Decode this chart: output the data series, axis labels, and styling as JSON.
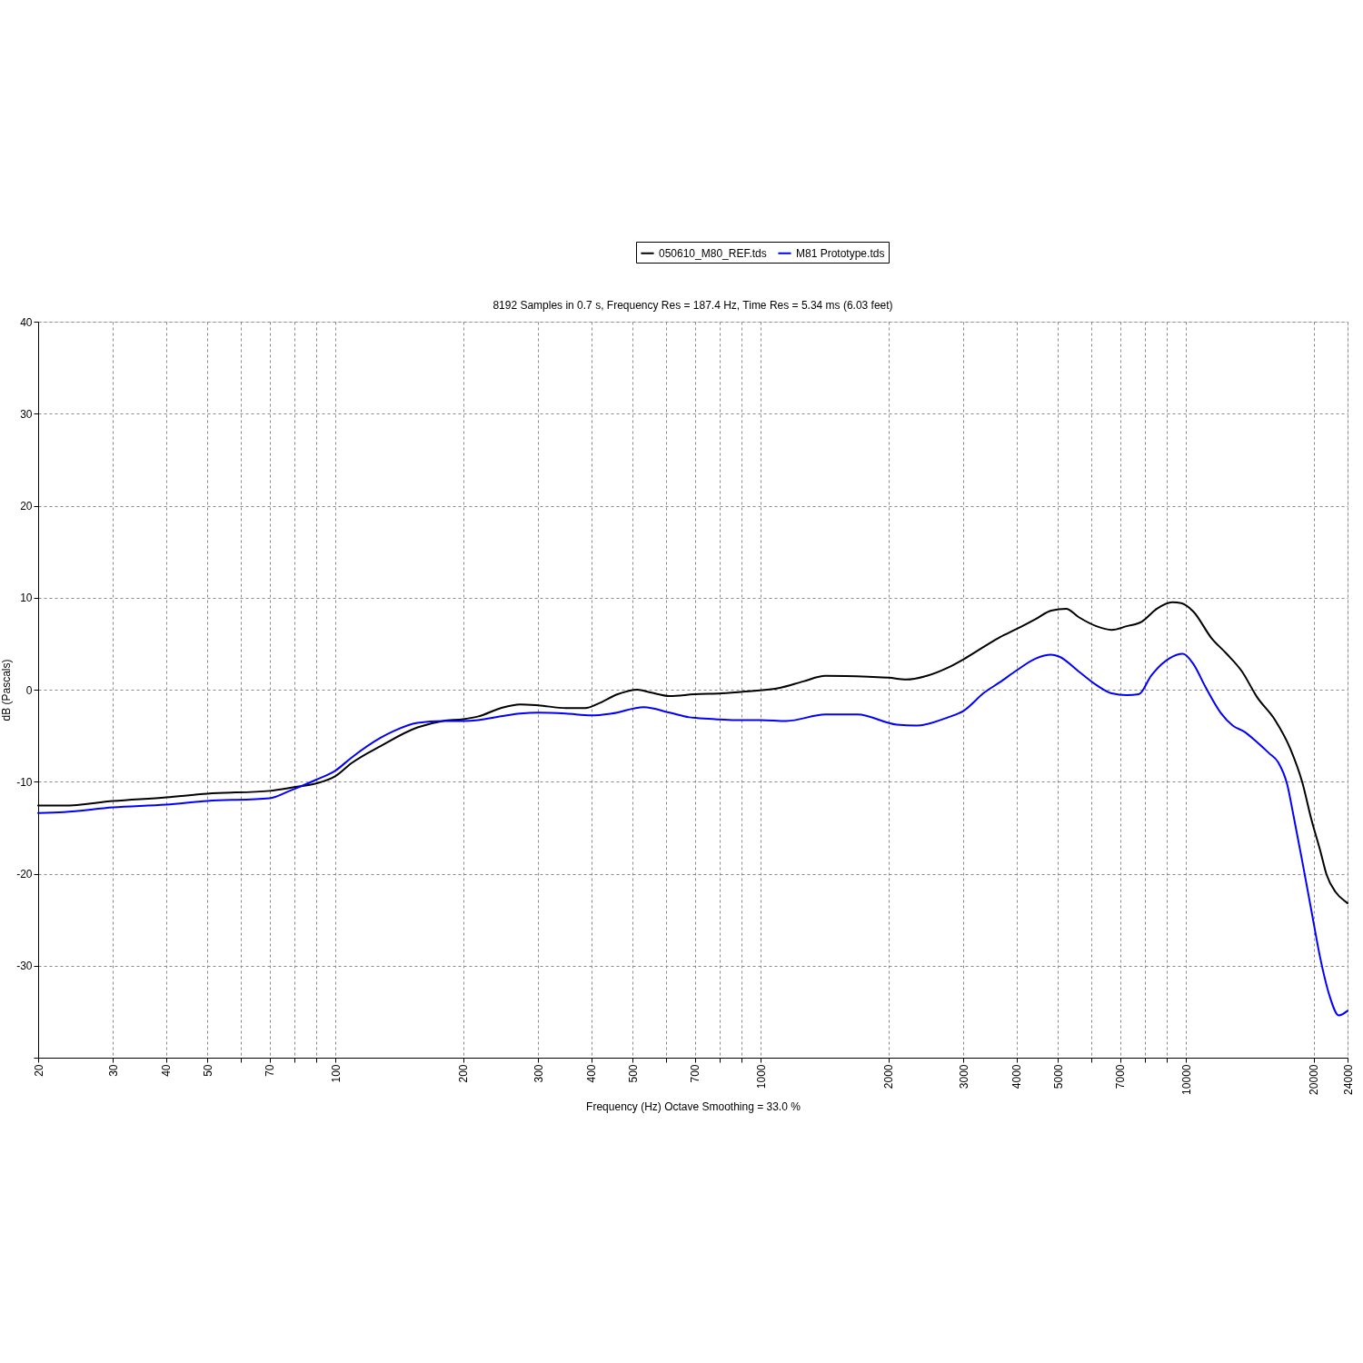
{
  "chart_data": {
    "type": "line",
    "title": "8192 Samples in 0.7 s, Frequency Res = 187.4 Hz, Time Res = 5.34 ms (6.03 feet)",
    "xlabel": "Frequency (Hz) Octave Smoothing = 33.0 %",
    "ylabel": "dB (Pascals)",
    "log": "x",
    "grid": true,
    "legend": "top",
    "line_style": "solid",
    "xlim": [
      20,
      24000
    ],
    "ylim": [
      -40,
      40
    ],
    "xticks": [
      20,
      30,
      40,
      50,
      {
        "value": 60,
        "label": null
      },
      70,
      {
        "value": 80,
        "label": null
      },
      {
        "value": 90,
        "label": null
      },
      100,
      200,
      300,
      400,
      500,
      {
        "value": 600,
        "label": null
      },
      700,
      {
        "value": 800,
        "label": null
      },
      {
        "value": 900,
        "label": null
      },
      1000,
      2000,
      3000,
      4000,
      5000,
      {
        "value": 6000,
        "label": null
      },
      7000,
      {
        "value": 8000,
        "label": null
      },
      {
        "value": 9000,
        "label": null
      },
      10000,
      20000,
      24000
    ],
    "yticks": [
      {
        "value": -40,
        "label": null
      },
      -30,
      -20,
      -10,
      0,
      10,
      20,
      30,
      40
    ],
    "series": [
      {
        "name": "050610_M80_REF.tds",
        "color": "#000000",
        "x": [
          20,
          23,
          30,
          40,
          50,
          70,
          80,
          90,
          100,
          109,
          128,
          156,
          179,
          200,
          217,
          245,
          272,
          300,
          348,
          387,
          416,
          461,
          513,
          550,
          611,
          700,
          810,
          920,
          1110,
          1260,
          1420,
          1790,
          2000,
          2200,
          2460,
          2760,
          3000,
          3360,
          3650,
          4000,
          4440,
          4820,
          5230,
          5590,
          6160,
          6690,
          7260,
          7880,
          8550,
          9290,
          9750,
          10410,
          11490,
          12470,
          13540,
          14700,
          16210,
          17600,
          18790,
          19730,
          20730,
          21420,
          22500,
          23840,
          24000
        ],
        "values": [
          -12.6,
          -12.6,
          -12.1,
          -11.7,
          -11.3,
          -11.0,
          -10.6,
          -10.2,
          -9.4,
          -8.0,
          -6.1,
          -4.1,
          -3.4,
          -3.2,
          -2.9,
          -2.0,
          -1.6,
          -1.7,
          -2.0,
          -2.0,
          -1.5,
          -0.5,
          0.0,
          -0.3,
          -0.7,
          -0.5,
          -0.4,
          -0.2,
          0.2,
          0.9,
          1.5,
          1.4,
          1.3,
          1.1,
          1.5,
          2.4,
          3.3,
          4.7,
          5.7,
          6.6,
          7.7,
          8.6,
          8.8,
          7.9,
          6.9,
          6.5,
          6.9,
          7.4,
          8.8,
          9.5,
          9.4,
          8.5,
          5.6,
          3.9,
          2.0,
          -0.8,
          -3.3,
          -6.4,
          -10.1,
          -14.1,
          -17.6,
          -20.1,
          -22.0,
          -23.1,
          -23.2
        ]
      },
      {
        "name": "M81 Prototype.tds",
        "color": "#0000ff",
        "x": [
          20,
          23,
          30,
          40,
          50,
          70,
          78,
          80,
          90,
          100,
          109,
          128,
          137,
          156,
          179,
          200,
          217,
          245,
          272,
          300,
          348,
          400,
          446,
          531,
          611,
          679,
          782,
          869,
          1000,
          1150,
          1420,
          1690,
          2090,
          2330,
          2760,
          3000,
          3360,
          3650,
          4000,
          4440,
          4820,
          5030,
          5590,
          6160,
          6690,
          7260,
          7750,
          8280,
          9140,
          9840,
          10410,
          11120,
          12070,
          12890,
          13760,
          14700,
          15690,
          16490,
          17310,
          17880,
          18790,
          19730,
          20730,
          21780,
          22880,
          24000
        ],
        "values": [
          -13.4,
          -13.3,
          -12.8,
          -12.5,
          -12.1,
          -11.8,
          -11.0,
          -10.8,
          -9.8,
          -8.8,
          -7.4,
          -5.2,
          -4.5,
          -3.6,
          -3.4,
          -3.4,
          -3.3,
          -2.9,
          -2.6,
          -2.5,
          -2.6,
          -2.8,
          -2.6,
          -1.9,
          -2.5,
          -3.0,
          -3.2,
          -3.3,
          -3.3,
          -3.4,
          -2.7,
          -2.7,
          -3.8,
          -3.9,
          -3.0,
          -2.3,
          -0.3,
          0.8,
          2.1,
          3.4,
          3.8,
          3.6,
          2.0,
          0.5,
          -0.4,
          -0.6,
          -0.5,
          1.5,
          3.4,
          3.9,
          2.8,
          0.3,
          -2.5,
          -3.9,
          -4.6,
          -5.7,
          -6.9,
          -7.9,
          -10.3,
          -13.5,
          -18.7,
          -24.0,
          -29.3,
          -33.3,
          -35.4,
          -34.9
        ]
      }
    ]
  }
}
